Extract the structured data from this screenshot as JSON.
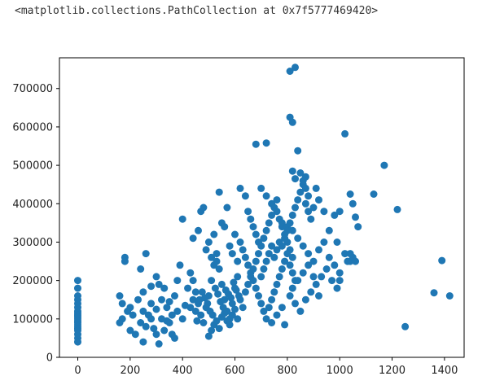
{
  "output": {
    "repr": "<matplotlib.collections.PathCollection at 0x7f5777469420>"
  },
  "chart_data": {
    "type": "scatter",
    "title": "",
    "xlabel": "",
    "ylabel": "",
    "xlim": [
      -70,
      1475
    ],
    "ylim": [
      0,
      780000
    ],
    "xticks": [
      0,
      200,
      400,
      600,
      800,
      1000,
      1200,
      1400
    ],
    "yticks": [
      0,
      100000,
      200000,
      300000,
      400000,
      500000,
      600000,
      700000
    ],
    "xtick_labels": [
      "0",
      "200",
      "400",
      "600",
      "800",
      "1000",
      "1200",
      "1400"
    ],
    "ytick_labels": [
      "0",
      "100000",
      "200000",
      "300000",
      "400000",
      "500000",
      "600000",
      "700000"
    ],
    "grid": false,
    "marker_color": "#1f77b4",
    "points": [
      [
        0,
        200000
      ],
      [
        0,
        180000
      ],
      [
        0,
        160000
      ],
      [
        0,
        150000
      ],
      [
        0,
        140000
      ],
      [
        0,
        130000
      ],
      [
        0,
        120000
      ],
      [
        0,
        115000
      ],
      [
        0,
        110000
      ],
      [
        0,
        105000
      ],
      [
        0,
        100000
      ],
      [
        0,
        95000
      ],
      [
        0,
        90000
      ],
      [
        0,
        85000
      ],
      [
        0,
        80000
      ],
      [
        0,
        75000
      ],
      [
        0,
        70000
      ],
      [
        0,
        60000
      ],
      [
        0,
        50000
      ],
      [
        0,
        40000
      ],
      [
        180,
        260000
      ],
      [
        180,
        250000
      ],
      [
        160,
        160000
      ],
      [
        170,
        140000
      ],
      [
        200,
        130000
      ],
      [
        190,
        120000
      ],
      [
        210,
        110000
      ],
      [
        170,
        100000
      ],
      [
        160,
        90000
      ],
      [
        200,
        70000
      ],
      [
        220,
        60000
      ],
      [
        240,
        90000
      ],
      [
        230,
        150000
      ],
      [
        250,
        170000
      ],
      [
        240,
        230000
      ],
      [
        260,
        270000
      ],
      [
        250,
        120000
      ],
      [
        270,
        110000
      ],
      [
        280,
        140000
      ],
      [
        260,
        80000
      ],
      [
        290,
        75000
      ],
      [
        300,
        60000
      ],
      [
        310,
        35000
      ],
      [
        250,
        40000
      ],
      [
        280,
        100000
      ],
      [
        300,
        125000
      ],
      [
        320,
        150000
      ],
      [
        330,
        180000
      ],
      [
        340,
        130000
      ],
      [
        350,
        90000
      ],
      [
        360,
        110000
      ],
      [
        370,
        160000
      ],
      [
        380,
        200000
      ],
      [
        390,
        240000
      ],
      [
        360,
        60000
      ],
      [
        370,
        50000
      ],
      [
        300,
        210000
      ],
      [
        310,
        190000
      ],
      [
        280,
        185000
      ],
      [
        320,
        100000
      ],
      [
        340,
        95000
      ],
      [
        330,
        70000
      ],
      [
        350,
        145000
      ],
      [
        380,
        120000
      ],
      [
        400,
        100000
      ],
      [
        410,
        135000
      ],
      [
        420,
        180000
      ],
      [
        430,
        220000
      ],
      [
        440,
        200000
      ],
      [
        450,
        170000
      ],
      [
        460,
        140000
      ],
      [
        470,
        110000
      ],
      [
        480,
        90000
      ],
      [
        490,
        130000
      ],
      [
        500,
        160000
      ],
      [
        510,
        200000
      ],
      [
        520,
        240000
      ],
      [
        530,
        270000
      ],
      [
        540,
        230000
      ],
      [
        550,
        190000
      ],
      [
        560,
        150000
      ],
      [
        570,
        120000
      ],
      [
        580,
        100000
      ],
      [
        590,
        140000
      ],
      [
        600,
        180000
      ],
      [
        610,
        210000
      ],
      [
        400,
        360000
      ],
      [
        440,
        310000
      ],
      [
        460,
        330000
      ],
      [
        470,
        380000
      ],
      [
        480,
        390000
      ],
      [
        490,
        280000
      ],
      [
        500,
        300000
      ],
      [
        510,
        260000
      ],
      [
        520,
        320000
      ],
      [
        530,
        250000
      ],
      [
        540,
        430000
      ],
      [
        550,
        350000
      ],
      [
        560,
        340000
      ],
      [
        570,
        390000
      ],
      [
        580,
        290000
      ],
      [
        590,
        270000
      ],
      [
        600,
        320000
      ],
      [
        610,
        250000
      ],
      [
        620,
        300000
      ],
      [
        630,
        280000
      ],
      [
        430,
        130000
      ],
      [
        440,
        150000
      ],
      [
        450,
        120000
      ],
      [
        455,
        95000
      ],
      [
        465,
        150000
      ],
      [
        475,
        170000
      ],
      [
        485,
        155000
      ],
      [
        495,
        140000
      ],
      [
        505,
        120000
      ],
      [
        515,
        110000
      ],
      [
        525,
        180000
      ],
      [
        535,
        165000
      ],
      [
        545,
        145000
      ],
      [
        555,
        130000
      ],
      [
        565,
        175000
      ],
      [
        575,
        165000
      ],
      [
        585,
        155000
      ],
      [
        595,
        195000
      ],
      [
        605,
        175000
      ],
      [
        615,
        160000
      ],
      [
        500,
        55000
      ],
      [
        510,
        70000
      ],
      [
        520,
        85000
      ],
      [
        530,
        95000
      ],
      [
        540,
        75000
      ],
      [
        550,
        105000
      ],
      [
        560,
        115000
      ],
      [
        570,
        95000
      ],
      [
        580,
        85000
      ],
      [
        590,
        110000
      ],
      [
        600,
        125000
      ],
      [
        610,
        100000
      ],
      [
        620,
        150000
      ],
      [
        630,
        130000
      ],
      [
        640,
        170000
      ],
      [
        650,
        190000
      ],
      [
        660,
        210000
      ],
      [
        670,
        230000
      ],
      [
        680,
        250000
      ],
      [
        690,
        270000
      ],
      [
        620,
        440000
      ],
      [
        640,
        420000
      ],
      [
        650,
        380000
      ],
      [
        660,
        360000
      ],
      [
        670,
        340000
      ],
      [
        680,
        320000
      ],
      [
        690,
        300000
      ],
      [
        700,
        290000
      ],
      [
        710,
        310000
      ],
      [
        720,
        330000
      ],
      [
        730,
        350000
      ],
      [
        740,
        370000
      ],
      [
        750,
        390000
      ],
      [
        760,
        410000
      ],
      [
        770,
        360000
      ],
      [
        780,
        340000
      ],
      [
        790,
        320000
      ],
      [
        800,
        300000
      ],
      [
        810,
        280000
      ],
      [
        820,
        260000
      ],
      [
        680,
        555000
      ],
      [
        720,
        558000
      ],
      [
        700,
        440000
      ],
      [
        720,
        420000
      ],
      [
        740,
        400000
      ],
      [
        760,
        380000
      ],
      [
        780,
        350000
      ],
      [
        800,
        340000
      ],
      [
        820,
        330000
      ],
      [
        840,
        310000
      ],
      [
        860,
        290000
      ],
      [
        880,
        270000
      ],
      [
        900,
        250000
      ],
      [
        920,
        280000
      ],
      [
        940,
        300000
      ],
      [
        960,
        260000
      ],
      [
        980,
        240000
      ],
      [
        1000,
        220000
      ],
      [
        1020,
        270000
      ],
      [
        1040,
        250000
      ],
      [
        640,
        260000
      ],
      [
        650,
        240000
      ],
      [
        660,
        220000
      ],
      [
        670,
        200000
      ],
      [
        680,
        180000
      ],
      [
        690,
        160000
      ],
      [
        700,
        140000
      ],
      [
        710,
        120000
      ],
      [
        720,
        100000
      ],
      [
        730,
        130000
      ],
      [
        740,
        150000
      ],
      [
        750,
        170000
      ],
      [
        760,
        190000
      ],
      [
        770,
        210000
      ],
      [
        780,
        230000
      ],
      [
        790,
        250000
      ],
      [
        800,
        270000
      ],
      [
        810,
        240000
      ],
      [
        820,
        220000
      ],
      [
        830,
        200000
      ],
      [
        700,
        210000
      ],
      [
        710,
        230000
      ],
      [
        720,
        250000
      ],
      [
        730,
        270000
      ],
      [
        740,
        290000
      ],
      [
        750,
        260000
      ],
      [
        760,
        280000
      ],
      [
        770,
        300000
      ],
      [
        780,
        290000
      ],
      [
        790,
        310000
      ],
      [
        800,
        330000
      ],
      [
        810,
        350000
      ],
      [
        820,
        370000
      ],
      [
        830,
        390000
      ],
      [
        840,
        410000
      ],
      [
        850,
        430000
      ],
      [
        860,
        450000
      ],
      [
        870,
        470000
      ],
      [
        880,
        380000
      ],
      [
        890,
        360000
      ],
      [
        740,
        90000
      ],
      [
        760,
        110000
      ],
      [
        780,
        130000
      ],
      [
        790,
        85000
      ],
      [
        810,
        160000
      ],
      [
        830,
        140000
      ],
      [
        850,
        120000
      ],
      [
        870,
        150000
      ],
      [
        890,
        170000
      ],
      [
        910,
        190000
      ],
      [
        930,
        210000
      ],
      [
        950,
        230000
      ],
      [
        970,
        200000
      ],
      [
        990,
        180000
      ],
      [
        820,
        180000
      ],
      [
        840,
        200000
      ],
      [
        860,
        220000
      ],
      [
        880,
        240000
      ],
      [
        900,
        210000
      ],
      [
        920,
        160000
      ],
      [
        830,
        755000
      ],
      [
        810,
        745000
      ],
      [
        810,
        625000
      ],
      [
        820,
        612000
      ],
      [
        840,
        538000
      ],
      [
        820,
        485000
      ],
      [
        830,
        465000
      ],
      [
        850,
        480000
      ],
      [
        860,
        460000
      ],
      [
        870,
        440000
      ],
      [
        870,
        400000
      ],
      [
        880,
        420000
      ],
      [
        900,
        390000
      ],
      [
        910,
        440000
      ],
      [
        920,
        410000
      ],
      [
        940,
        380000
      ],
      [
        960,
        330000
      ],
      [
        980,
        370000
      ],
      [
        990,
        300000
      ],
      [
        1000,
        200000
      ],
      [
        1000,
        380000
      ],
      [
        1020,
        582000
      ],
      [
        1040,
        425000
      ],
      [
        1050,
        400000
      ],
      [
        1060,
        365000
      ],
      [
        1070,
        340000
      ],
      [
        1040,
        270000
      ],
      [
        1050,
        260000
      ],
      [
        1060,
        250000
      ],
      [
        1030,
        250000
      ],
      [
        1130,
        425000
      ],
      [
        1170,
        500000
      ],
      [
        1220,
        385000
      ],
      [
        1250,
        80000
      ],
      [
        1360,
        168000
      ],
      [
        1390,
        252000
      ],
      [
        1420,
        160000
      ]
    ]
  }
}
